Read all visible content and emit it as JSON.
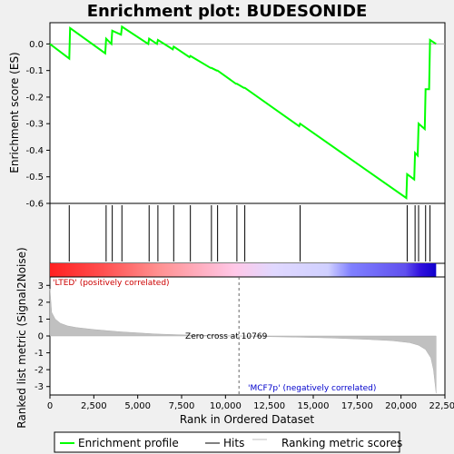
{
  "chart_data": {
    "type": "line",
    "title": "Enrichment plot: BUDESONIDE",
    "top_panel": {
      "ylabel": "Enrichment score (ES)",
      "ylim": [
        -0.6,
        0.08
      ],
      "yticks": [
        "0.0",
        "-0.1",
        "-0.2",
        "-0.3",
        "-0.4",
        "-0.5",
        "-0.6"
      ],
      "ytick_values": [
        0.0,
        -0.1,
        -0.2,
        -0.3,
        -0.4,
        -0.5,
        -0.6
      ],
      "series": [
        {
          "name": "Enrichment profile",
          "color": "#00ff00",
          "x": [
            0,
            1100,
            1150,
            3150,
            3200,
            3500,
            3550,
            4050,
            4100,
            5600,
            5650,
            6100,
            6150,
            7000,
            7050,
            7950,
            8000,
            9150,
            9200,
            9500,
            9550,
            10600,
            10650,
            11050,
            11100,
            14200,
            14250,
            20300,
            20350,
            20750,
            20800,
            20950,
            21000,
            21350,
            21400,
            21600,
            21650,
            22000
          ],
          "y": [
            0.0,
            -0.055,
            0.06,
            -0.035,
            0.02,
            0.0,
            0.05,
            0.035,
            0.065,
            0.0,
            0.02,
            0.0,
            0.015,
            -0.02,
            -0.01,
            -0.05,
            -0.045,
            -0.09,
            -0.09,
            -0.1,
            -0.1,
            -0.15,
            -0.15,
            -0.165,
            -0.165,
            -0.31,
            -0.3,
            -0.58,
            -0.49,
            -0.51,
            -0.41,
            -0.42,
            -0.3,
            -0.32,
            -0.17,
            -0.17,
            0.015,
            0.0
          ]
        }
      ],
      "hits": [
        1100,
        3200,
        3550,
        4100,
        5650,
        6150,
        7050,
        8000,
        9200,
        9550,
        10650,
        11100,
        14250,
        20350,
        20800,
        21000,
        21400,
        21650
      ]
    },
    "colorbar": {
      "gradient": [
        "#ff0000",
        "#ff8080",
        "#ffc0e8",
        "#d8d8ff",
        "#8080ff",
        "#0000cc"
      ],
      "label_left": "'LTED' (positively correlated)",
      "label_right": "'MCF7p' (negatively correlated)"
    },
    "bottom_panel": {
      "ylabel": "Ranked list metric (Signal2Noise)",
      "ylim": [
        -3.5,
        3.5
      ],
      "yticks": [
        "3",
        "2",
        "1",
        "0",
        "-1",
        "-2",
        "-3"
      ],
      "ytick_values": [
        3,
        2,
        1,
        0,
        -1,
        -2,
        -3
      ],
      "metric_x": [
        0,
        100,
        300,
        600,
        1000,
        1500,
        2500,
        4000,
        6000,
        8000,
        10000,
        10769,
        12000,
        14000,
        16000,
        18000,
        19500,
        20500,
        21000,
        21400,
        21700,
        21850,
        22000
      ],
      "metric_y": [
        2.8,
        1.4,
        1.0,
        0.75,
        0.6,
        0.5,
        0.38,
        0.25,
        0.12,
        0.05,
        0.01,
        0.0,
        -0.03,
        -0.07,
        -0.12,
        -0.2,
        -0.28,
        -0.4,
        -0.55,
        -0.8,
        -1.3,
        -2.0,
        -3.4
      ],
      "zero_cross_label": "Zero cross at 10769",
      "zero_cross": 10769
    },
    "xaxis": {
      "xlabel": "Rank in Ordered Dataset",
      "xlim": [
        0,
        22500
      ],
      "xticks": [
        "0",
        "2,500",
        "5,000",
        "7,500",
        "10,000",
        "12,500",
        "15,000",
        "17,500",
        "20,000",
        "22,500"
      ],
      "xtick_values": [
        0,
        2500,
        5000,
        7500,
        10000,
        12500,
        15000,
        17500,
        20000,
        22500
      ]
    },
    "legend": {
      "placement": "bottom",
      "items": [
        {
          "label": "Enrichment profile",
          "color": "#00ff00"
        },
        {
          "label": "Hits",
          "color": "#000000"
        },
        {
          "label": "Ranking metric scores",
          "color": "#c0c0c0"
        }
      ]
    }
  }
}
